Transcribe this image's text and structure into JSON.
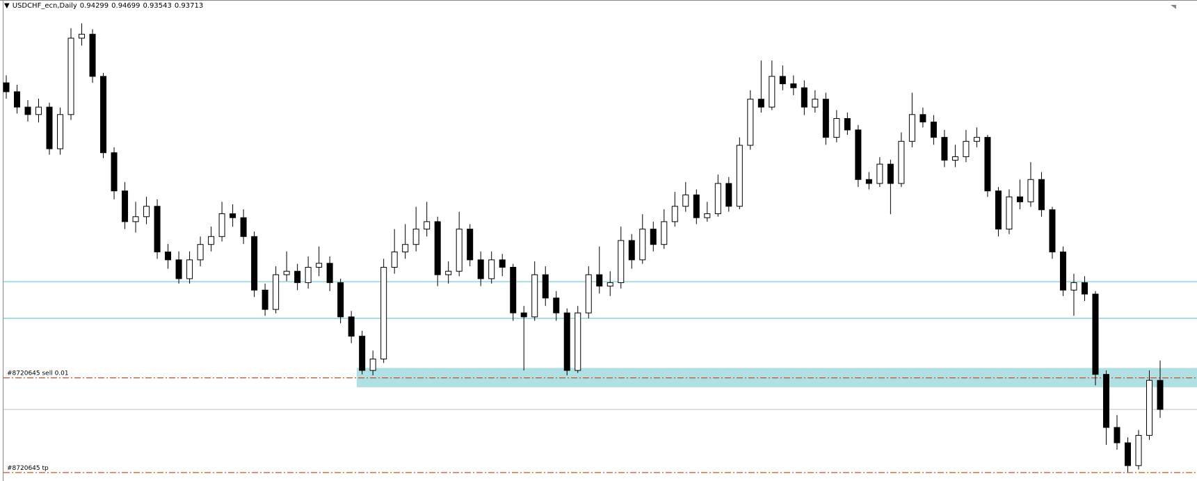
{
  "chart_data": {
    "type": "candlestick",
    "symbol": "USDCHF_ecn,Daily",
    "last_ohlc": [
      0.94299,
      0.94699,
      0.93543,
      0.93713
    ],
    "ylim": [
      0.9227,
      1.0197
    ],
    "up_color": "#ffffff",
    "down_color": "#000000",
    "line_color": "#000000",
    "hlines": [
      0.9629,
      0.9555
    ],
    "hline_color": "#a6dde6",
    "zone": [
      0.9416,
      0.9455
    ],
    "zone_color": "#b0dfe4",
    "orders": [
      {
        "label": "#8720645 sell 0.01",
        "price": 0.9435
      },
      {
        "label": "#8720645 tp",
        "price": 0.9244
      }
    ],
    "order_color": "#c8501e",
    "candles": [
      [
        1.003,
        1.0045,
        0.9998,
        1.0012
      ],
      [
        1.0012,
        1.0026,
        0.9968,
        0.9981
      ],
      [
        0.9981,
        0.9995,
        0.9952,
        0.9966
      ],
      [
        0.9966,
        0.9998,
        0.995,
        0.9981
      ],
      [
        0.9981,
        0.999,
        0.9885,
        0.9897
      ],
      [
        0.9897,
        0.998,
        0.9885,
        0.9966
      ],
      [
        0.9966,
        1.014,
        0.9955,
        1.012
      ],
      [
        1.012,
        1.015,
        1.0105,
        1.0128
      ],
      [
        1.0128,
        1.0138,
        1.003,
        1.0043
      ],
      [
        1.0043,
        1.005,
        0.9878,
        0.9889
      ],
      [
        0.9889,
        0.99,
        0.9795,
        0.9812
      ],
      [
        0.9812,
        0.983,
        0.9735,
        0.975
      ],
      [
        0.975,
        0.979,
        0.9728,
        0.976
      ],
      [
        0.976,
        0.98,
        0.9745,
        0.9781
      ],
      [
        0.9781,
        0.9795,
        0.9675,
        0.9689
      ],
      [
        0.9689,
        0.9705,
        0.9655,
        0.9673
      ],
      [
        0.9673,
        0.969,
        0.9625,
        0.9635
      ],
      [
        0.9635,
        0.969,
        0.9625,
        0.9673
      ],
      [
        0.9673,
        0.972,
        0.966,
        0.9704
      ],
      [
        0.9704,
        0.974,
        0.969,
        0.972
      ],
      [
        0.972,
        0.979,
        0.971,
        0.9766
      ],
      [
        0.9766,
        0.9785,
        0.974,
        0.9758
      ],
      [
        0.9758,
        0.9775,
        0.9705,
        0.972
      ],
      [
        0.972,
        0.973,
        0.9598,
        0.9612
      ],
      [
        0.9612,
        0.9625,
        0.956,
        0.9573
      ],
      [
        0.9573,
        0.966,
        0.9565,
        0.9643
      ],
      [
        0.9643,
        0.969,
        0.963,
        0.965
      ],
      [
        0.965,
        0.9665,
        0.9612,
        0.9627
      ],
      [
        0.9627,
        0.968,
        0.9615,
        0.9658
      ],
      [
        0.9658,
        0.97,
        0.964,
        0.9666
      ],
      [
        0.9666,
        0.968,
        0.961,
        0.9627
      ],
      [
        0.9627,
        0.9635,
        0.9545,
        0.9558
      ],
      [
        0.9558,
        0.957,
        0.9505,
        0.9519
      ],
      [
        0.9519,
        0.953,
        0.9442,
        0.945
      ],
      [
        0.945,
        0.949,
        0.944,
        0.9473
      ],
      [
        0.9473,
        0.9675,
        0.9465,
        0.9658
      ],
      [
        0.9658,
        0.9735,
        0.9645,
        0.9689
      ],
      [
        0.9689,
        0.9745,
        0.9675,
        0.9704
      ],
      [
        0.9704,
        0.978,
        0.969,
        0.9735
      ],
      [
        0.9735,
        0.979,
        0.972,
        0.975
      ],
      [
        0.975,
        0.976,
        0.962,
        0.9643
      ],
      [
        0.9643,
        0.967,
        0.9625,
        0.965
      ],
      [
        0.965,
        0.977,
        0.964,
        0.9735
      ],
      [
        0.9735,
        0.9745,
        0.966,
        0.9673
      ],
      [
        0.9673,
        0.969,
        0.962,
        0.9635
      ],
      [
        0.9635,
        0.969,
        0.9625,
        0.9673
      ],
      [
        0.9673,
        0.9685,
        0.964,
        0.9658
      ],
      [
        0.9658,
        0.9665,
        0.955,
        0.9566
      ],
      [
        0.9566,
        0.958,
        0.945,
        0.9558
      ],
      [
        0.9558,
        0.967,
        0.955,
        0.9643
      ],
      [
        0.9643,
        0.966,
        0.958,
        0.9596
      ],
      [
        0.9596,
        0.961,
        0.955,
        0.9566
      ],
      [
        0.9566,
        0.9575,
        0.944,
        0.945
      ],
      [
        0.945,
        0.958,
        0.9445,
        0.9566
      ],
      [
        0.9566,
        0.966,
        0.9555,
        0.9643
      ],
      [
        0.9643,
        0.97,
        0.9605,
        0.962
      ],
      [
        0.962,
        0.965,
        0.96,
        0.9627
      ],
      [
        0.9627,
        0.974,
        0.9615,
        0.9712
      ],
      [
        0.9712,
        0.9725,
        0.9655,
        0.9673
      ],
      [
        0.9673,
        0.9765,
        0.9665,
        0.9735
      ],
      [
        0.9735,
        0.975,
        0.969,
        0.9704
      ],
      [
        0.9704,
        0.9775,
        0.9695,
        0.975
      ],
      [
        0.975,
        0.981,
        0.974,
        0.9781
      ],
      [
        0.9781,
        0.983,
        0.977,
        0.9804
      ],
      [
        0.9804,
        0.9815,
        0.9745,
        0.9758
      ],
      [
        0.9758,
        0.979,
        0.975,
        0.9766
      ],
      [
        0.9766,
        0.9845,
        0.976,
        0.9827
      ],
      [
        0.9827,
        0.984,
        0.977,
        0.9781
      ],
      [
        0.9781,
        0.992,
        0.9775,
        0.9904
      ],
      [
        0.9904,
        1.0015,
        0.9895,
        0.9997
      ],
      [
        0.9997,
        1.0075,
        0.997,
        0.9981
      ],
      [
        0.9981,
        1.0075,
        0.9975,
        1.0043
      ],
      [
        1.0043,
        1.0065,
        1.0015,
        1.0028
      ],
      [
        1.0028,
        1.0045,
        1.0005,
        1.002
      ],
      [
        1.002,
        1.0035,
        0.9965,
        0.9981
      ],
      [
        0.9981,
        1.0015,
        0.997,
        0.9997
      ],
      [
        0.9997,
        1.001,
        0.9905,
        0.992
      ],
      [
        0.992,
        0.9975,
        0.991,
        0.9958
      ],
      [
        0.9958,
        0.997,
        0.9925,
        0.9935
      ],
      [
        0.9935,
        0.9945,
        0.982,
        0.9835
      ],
      [
        0.9835,
        0.985,
        0.9815,
        0.9827
      ],
      [
        0.9827,
        0.988,
        0.982,
        0.9866
      ],
      [
        0.9866,
        0.9875,
        0.9765,
        0.9827
      ],
      [
        0.9827,
        0.993,
        0.982,
        0.9912
      ],
      [
        0.9912,
        1.001,
        0.99,
        0.9966
      ],
      [
        0.9966,
        0.998,
        0.994,
        0.9951
      ],
      [
        0.9951,
        0.9965,
        0.9905,
        0.992
      ],
      [
        0.992,
        0.9935,
        0.986,
        0.9874
      ],
      [
        0.9874,
        0.9905,
        0.986,
        0.9881
      ],
      [
        0.9881,
        0.9935,
        0.987,
        0.9912
      ],
      [
        0.9912,
        0.994,
        0.99,
        0.992
      ],
      [
        0.992,
        0.9925,
        0.98,
        0.9812
      ],
      [
        0.9812,
        0.982,
        0.972,
        0.9735
      ],
      [
        0.9735,
        0.9815,
        0.9725,
        0.98
      ],
      [
        0.98,
        0.9835,
        0.9775,
        0.979
      ],
      [
        0.979,
        0.987,
        0.978,
        0.9835
      ],
      [
        0.9835,
        0.985,
        0.976,
        0.9774
      ],
      [
        0.9774,
        0.978,
        0.9675,
        0.9689
      ],
      [
        0.9689,
        0.97,
        0.96,
        0.9612
      ],
      [
        0.9612,
        0.9645,
        0.956,
        0.9627
      ],
      [
        0.9627,
        0.964,
        0.959,
        0.9604
      ],
      [
        0.9604,
        0.961,
        0.942,
        0.9442
      ],
      [
        0.9442,
        0.945,
        0.93,
        0.9335
      ],
      [
        0.9335,
        0.936,
        0.929,
        0.9304
      ],
      [
        0.9304,
        0.9315,
        0.9245,
        0.9258
      ],
      [
        0.9258,
        0.933,
        0.925,
        0.9319
      ],
      [
        0.9319,
        0.945,
        0.931,
        0.943
      ],
      [
        0.94299,
        0.94699,
        0.93543,
        0.93713
      ]
    ]
  }
}
